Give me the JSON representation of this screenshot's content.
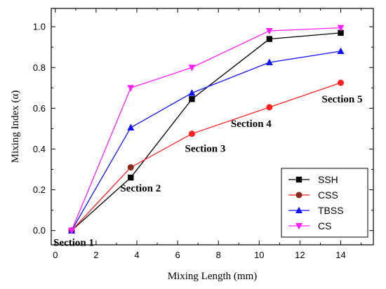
{
  "chart_data": {
    "type": "line",
    "xlabel": "Mixing Length (mm)",
    "ylabel": "Mixing Index (α)",
    "xlim": [
      -0.2,
      15.6
    ],
    "ylim": [
      -0.07,
      1.09
    ],
    "x_ticks": [
      0,
      2,
      4,
      6,
      8,
      10,
      12,
      14
    ],
    "y_ticks": [
      0.0,
      0.2,
      0.4,
      0.6,
      0.8,
      1.0
    ],
    "x_tick_labels": [
      "0",
      "2",
      "4",
      "6",
      "8",
      "10",
      "12",
      "14"
    ],
    "y_tick_labels": [
      "0.0",
      "0.2",
      "0.4",
      "0.6",
      "0.8",
      "1.0"
    ],
    "grid": false,
    "legend_position": "bottom-right",
    "series": [
      {
        "name": "SSH",
        "color": "#000000",
        "marker": "square",
        "x": [
          0.8,
          3.7,
          6.7,
          10.5,
          14
        ],
        "y": [
          0.0,
          0.26,
          0.645,
          0.94,
          0.97
        ]
      },
      {
        "name": "CSS",
        "color": "#8b2a1a",
        "marker": "circle",
        "x": [
          0.8,
          3.7,
          6.7,
          10.5,
          14
        ],
        "y": [
          0.0,
          0.31,
          0.475,
          0.605,
          0.725
        ],
        "line_color": "#ff2020",
        "marker_colors": [
          "#8b2a1a",
          "#8b2a1a",
          "#ff2020",
          "#ff2020",
          "#ff2020"
        ]
      },
      {
        "name": "TBSS",
        "color": "#1010ff",
        "marker": "triangle-up",
        "x": [
          0.8,
          3.7,
          6.7,
          10.5,
          14
        ],
        "y": [
          0.0,
          0.505,
          0.675,
          0.825,
          0.88
        ]
      },
      {
        "name": "CS",
        "color": "#ff20ff",
        "marker": "triangle-down",
        "x": [
          0.8,
          3.7,
          6.7,
          10.5,
          14
        ],
        "y": [
          0.0,
          0.7,
          0.8,
          0.98,
          0.995
        ]
      }
    ],
    "annotations": [
      {
        "text": "Section 1",
        "x": 0.8,
        "y": 0.0
      },
      {
        "text": "Section 2",
        "x": 3.7,
        "y": 0.26
      },
      {
        "text": "Section 3",
        "x": 6.7,
        "y": 0.475
      },
      {
        "text": "Section 4",
        "x": 10.5,
        "y": 0.605
      },
      {
        "text": "Section 5",
        "x": 14,
        "y": 0.725
      }
    ]
  }
}
